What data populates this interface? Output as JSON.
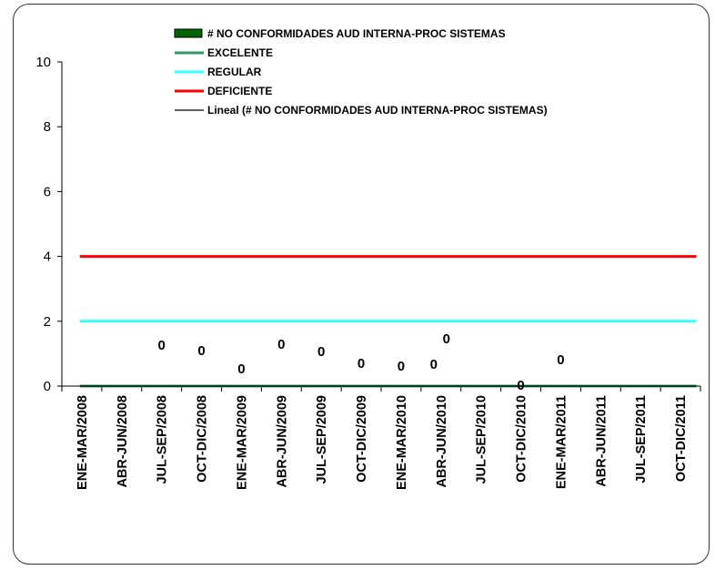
{
  "chart_data": {
    "type": "line",
    "categories": [
      "ENE-MAR/2008",
      "ABR-JUN/2008",
      "JUL-SEP/2008",
      "OCT-DIC/2008",
      "ENE-MAR/2009",
      "ABR-JUN/2009",
      "JUL-SEP/2009",
      "OCT-DIC/2009",
      "ENE-MAR/2010",
      "ABR-JUN/2010",
      "JUL-SEP/2010",
      "OCT-DIC/2010",
      "ENE-MAR/2011",
      "ABR-JUN/2011",
      "JUL-SEP/2011",
      "OCT-DIC/2011"
    ],
    "ylim": [
      0,
      10
    ],
    "yticks": [
      0,
      2,
      4,
      6,
      8,
      10
    ],
    "ytick_labels": [
      "0",
      "2",
      "4",
      "6",
      "8",
      "10"
    ],
    "series": [
      {
        "name": "# NO CONFORMIDADES AUD INTERNA-PROC SISTEMAS",
        "kind": "bar",
        "color": "#006400",
        "values": [
          0,
          0,
          0,
          0,
          0,
          0,
          0,
          0,
          0,
          0,
          0,
          0,
          0,
          0,
          0,
          0
        ]
      },
      {
        "name": "EXCELENTE",
        "kind": "line",
        "color": "#339966",
        "values": [
          0,
          0,
          0,
          0,
          0,
          0,
          0,
          0,
          0,
          0,
          0,
          0,
          0,
          0,
          0,
          0
        ]
      },
      {
        "name": "REGULAR",
        "kind": "line",
        "color": "#33FFFF",
        "values": [
          2,
          2,
          2,
          2,
          2,
          2,
          2,
          2,
          2,
          2,
          2,
          2,
          2,
          2,
          2,
          2
        ]
      },
      {
        "name": "DEFICIENTE",
        "kind": "line",
        "color": "#FF0000",
        "values": [
          4,
          4,
          4,
          4,
          4,
          4,
          4,
          4,
          4,
          4,
          4,
          4,
          4,
          4,
          4,
          4
        ]
      },
      {
        "name": "Lineal (# NO CONFORMIDADES AUD INTERNA-PROC SISTEMAS)",
        "kind": "trendline",
        "color": "#000000",
        "values": [
          0,
          0,
          0,
          0,
          0,
          0,
          0,
          0,
          0,
          0,
          0,
          0,
          0,
          0,
          0,
          0
        ]
      }
    ],
    "data_labels": [
      {
        "category": "JUL-SEP/2008",
        "text": "0"
      },
      {
        "category": "OCT-DIC/2008",
        "text": "0"
      },
      {
        "category": "ENE-MAR/2009",
        "text": "0"
      },
      {
        "category": "ABR-JUN/2009",
        "text": "0"
      },
      {
        "category": "JUL-SEP/2009",
        "text": "0"
      },
      {
        "category": "OCT-DIC/2009",
        "text": "0"
      },
      {
        "category": "ENE-MAR/2010",
        "text": "0"
      },
      {
        "category": "ABR-JUN/2010",
        "text": "0"
      },
      {
        "category": "ABR-JUN/2010",
        "text": "0"
      },
      {
        "category": "OCT-DIC/2010",
        "text": "0"
      },
      {
        "category": "ENE-MAR/2011",
        "text": "0"
      }
    ],
    "legend": "top-center",
    "grid": false
  }
}
